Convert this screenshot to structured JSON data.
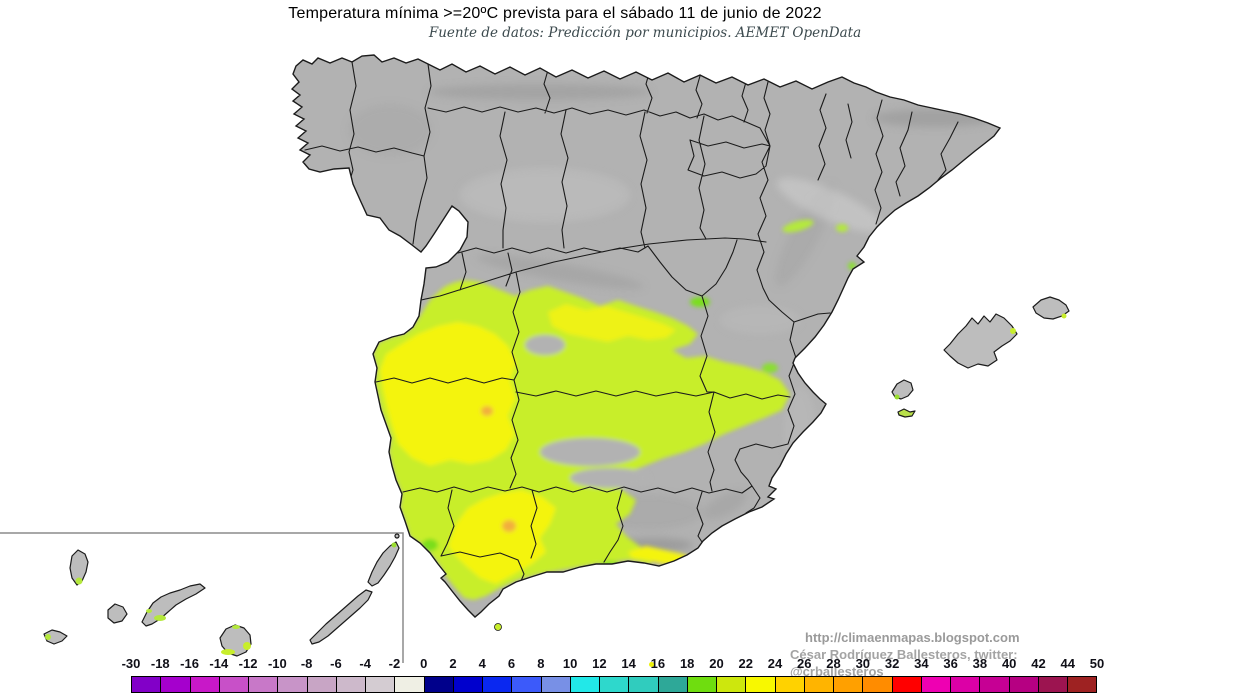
{
  "title": "Temperatura mínima >=20ºC prevista para el sábado 11 de junio de 2022",
  "subtitle": "Fuente de datos: Predicción por municipios. AEMET OpenData",
  "attribution": {
    "url": "http://climaenmapas.blogspot.com",
    "author": "César Rodríguez Ballesteros, twitter: @crballesteros"
  },
  "map": {
    "sea_color": "#ffffff",
    "land_color": "#b2b2b2",
    "boundary_color": "#1b1b1b",
    "inset_line_color": "#8c8c8c",
    "highlight_colors": {
      "band_18_20": "#7ade1f",
      "band_20_22": "#c8ee2c",
      "band_22_24": "#f4f408",
      "band_24_26": "#f2ae3c"
    }
  },
  "scale": {
    "labels": [
      "-30",
      "-18",
      "-16",
      "-14",
      "-12",
      "-10",
      "-8",
      "-6",
      "-4",
      "-2",
      "0",
      "2",
      "4",
      "6",
      "8",
      "10",
      "12",
      "14",
      "16",
      "18",
      "20",
      "22",
      "24",
      "26",
      "28",
      "30",
      "32",
      "34",
      "36",
      "38",
      "40",
      "42",
      "44",
      "50"
    ],
    "colors": [
      "#8200c8",
      "#a500cd",
      "#c818c8",
      "#c850c8",
      "#c878c8",
      "#c894c8",
      "#c8a5c5",
      "#cdb9cb",
      "#d4ccd2",
      "#efefe4",
      "#00008b",
      "#0000cd",
      "#0a28f0",
      "#3c5afa",
      "#7890e6",
      "#22e8e8",
      "#2ed8cc",
      "#30ccbe",
      "#2ea898",
      "#6fdd0f",
      "#cde70d",
      "#f8f800",
      "#ffd200",
      "#ffb400",
      "#ffa000",
      "#ff8c00",
      "#ff0000",
      "#ee00b2",
      "#dc00a6",
      "#c60094",
      "#b60082",
      "#9c1450",
      "#9e2222"
    ]
  }
}
